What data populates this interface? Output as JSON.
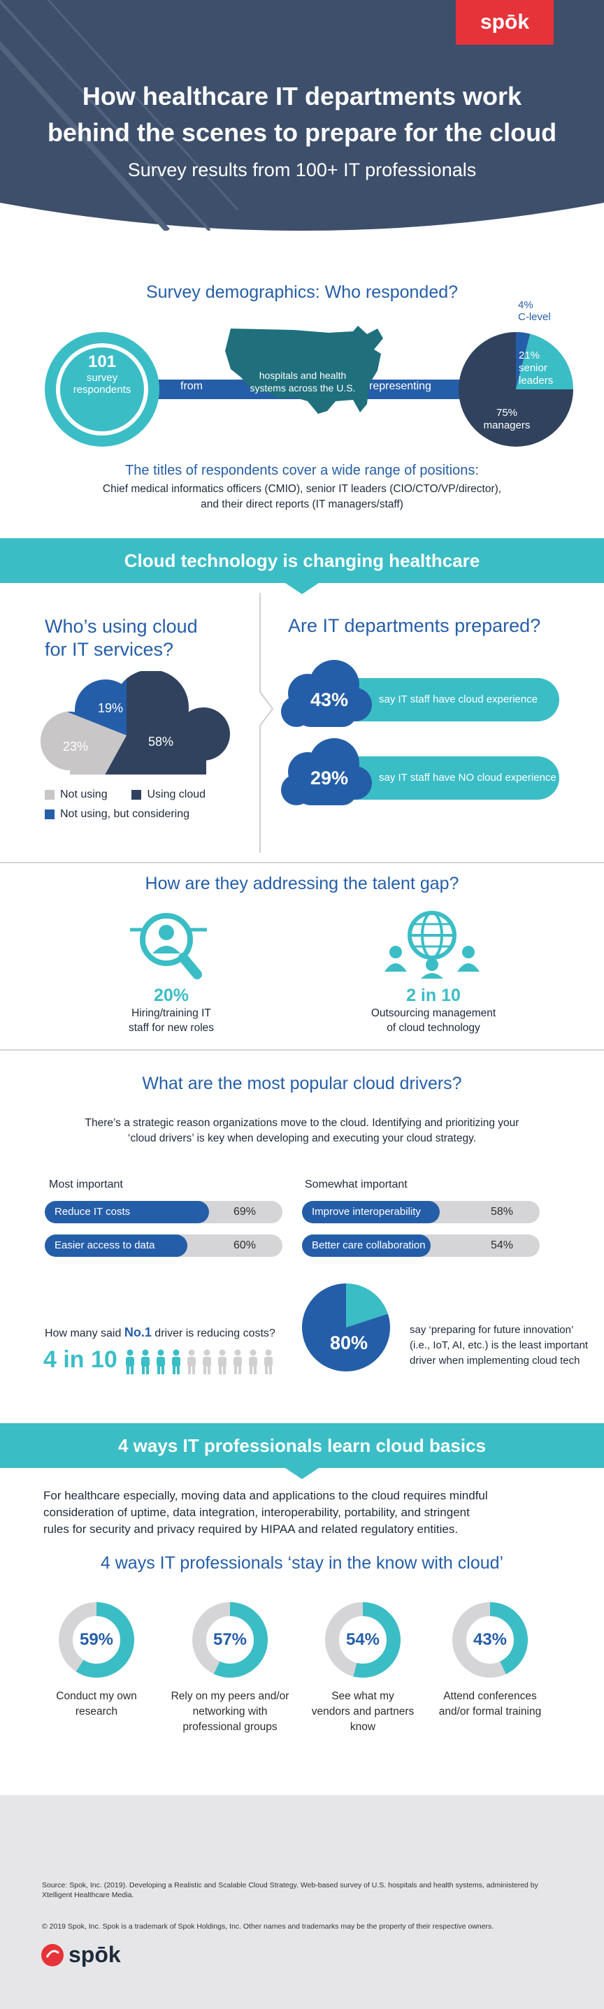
{
  "colors": {
    "navy": "#30425e",
    "teal": "#3bbdc6",
    "blue": "#255ea8",
    "gray": "#d5d5d7",
    "red": "#e63339"
  },
  "header": {
    "brand": "spōk",
    "title_line1": "How healthcare IT departments work",
    "title_line2": "behind the scenes to prepare for the cloud",
    "subtitle": "Survey results from 100+ IT professionals"
  },
  "demographics": {
    "title": "Survey demographics: Who responded?",
    "respondents_number": "101",
    "respondents_line1": "survey",
    "respondents_line2": "respondents",
    "from": "from",
    "hospitals_line1": "hospitals and health",
    "hospitals_line2": "systems across the U.S.",
    "representing": "representing",
    "pie": [
      {
        "label_pct": "4%",
        "label": "C-level",
        "value": 4
      },
      {
        "label_pct": "21%",
        "label_line1": "senior",
        "label_line2": "leaders",
        "value": 21
      },
      {
        "label_pct": "75%",
        "label": "managers",
        "value": 75
      }
    ],
    "titles_heading": "The titles of respondents cover a wide range of positions:",
    "titles_line1": "Chief medical informatics officers (CMIO), senior IT leaders (CIO/CTO/VP/director),",
    "titles_line2": "and their direct reports (IT managers/staff)"
  },
  "cloud_band": {
    "title": "Cloud technology is changing healthcare"
  },
  "usage": {
    "title_line1": "Who’s using cloud",
    "title_line2": "for IT services?",
    "slices": [
      {
        "pct": "58%",
        "value": 58,
        "name": "Using cloud"
      },
      {
        "pct": "23%",
        "value": 23,
        "name": "Not using"
      },
      {
        "pct": "19%",
        "value": 19,
        "name": "Not using, but considering"
      }
    ],
    "legend_not_using": "Not using",
    "legend_using": "Using cloud",
    "legend_considering": "Not using, but considering"
  },
  "prepared": {
    "title": "Are IT departments prepared?",
    "stat1_pct": "43%",
    "stat1_text": "say IT staff have cloud experience",
    "stat2_pct": "29%",
    "stat2_text": "say IT staff have NO cloud experience"
  },
  "talent": {
    "title": "How are they addressing the talent gap?",
    "hire_stat": "20%",
    "hire_line1": "Hiring/training IT",
    "hire_line2": "staff for new roles",
    "hire_icon": "magnifier-person-icon",
    "outsource_stat": "2 in 10",
    "outsource_line1": "Outsourcing management",
    "outsource_line2": "of cloud technology",
    "outsource_icon": "globe-people-icon"
  },
  "drivers": {
    "title": "What are the most popular cloud drivers?",
    "intro_line1": "There’s a strategic reason organizations move to the cloud. Identifying and prioritizing your",
    "intro_line2": "‘cloud drivers’ is key when developing and executing your cloud strategy.",
    "most_heading": "Most important",
    "somewhat_heading": "Somewhat important",
    "most": [
      {
        "label": "Reduce IT costs",
        "pct": "69%",
        "value": 69
      },
      {
        "label": "Easier access to data",
        "pct": "60%",
        "value": 60
      }
    ],
    "somewhat": [
      {
        "label": "Improve interoperability",
        "pct": "58%",
        "value": 58
      },
      {
        "label": "Better care collaboration",
        "pct": "54%",
        "value": 54
      }
    ],
    "no1_q_pre": "How many said ",
    "no1_q_highlight": "No.1",
    "no1_q_post": " driver is reducing costs?",
    "no1_stat": "4 in 10",
    "people_highlighted": 4,
    "people_total": 10,
    "innovation_pct": "80%",
    "innovation_value": 80,
    "innovation_line1": "say ‘preparing for future innovation’",
    "innovation_line2": "(i.e., IoT, AI, etc.) is the least important",
    "innovation_line3": "driver when implementing cloud tech"
  },
  "learn": {
    "band_title": "4 ways IT professionals learn cloud basics",
    "intro_line1": "For healthcare especially, moving data and applications to the cloud requires mindful",
    "intro_line2": "consideration of uptime, data integration, interoperability, portability, and stringent",
    "intro_line3": "rules for security and privacy required by HIPAA and related regulatory entities.",
    "subtitle": "4 ways IT professionals ‘stay in the know with cloud’",
    "ways": [
      {
        "pct": "59%",
        "value": 59,
        "line1": "Conduct my own",
        "line2": "research",
        "line3": ""
      },
      {
        "pct": "57%",
        "value": 57,
        "line1": "Rely on my peers and/or",
        "line2": "networking with",
        "line3": "professional groups"
      },
      {
        "pct": "54%",
        "value": 54,
        "line1": "See what my",
        "line2": "vendors and partners",
        "line3": "know"
      },
      {
        "pct": "43%",
        "value": 43,
        "line1": "Attend conferences",
        "line2": "and/or formal training",
        "line3": ""
      }
    ]
  },
  "footer": {
    "source_line1": "Source: Spok, Inc. (2019). Developing a Realistic and Scalable Cloud Strategy. Web-based survey of U.S. hospitals and health systems, administered by",
    "source_line2": "Xtelligent Healthcare Media.",
    "copyright": "© 2019 Spok, Inc. Spok is a trademark of Spok Holdings, Inc. Other names and trademarks may be the property of their respective owners.",
    "brand": "spōk"
  }
}
